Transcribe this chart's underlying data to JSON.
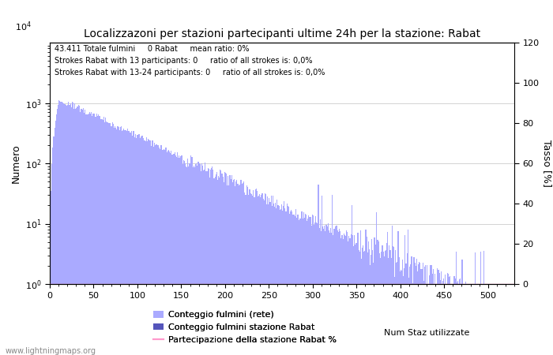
{
  "title": "Localizzazoni per stazioni partecipanti ultime 24h per la stazione: Rabat",
  "ylabel_left": "Numero",
  "ylabel_right": "Tasso [%]",
  "annotation_lines": [
    "43.411 Totale fulmini     0 Rabat     mean ratio: 0%",
    "Strokes Rabat with 13 participants: 0     ratio of all strokes is: 0,0%",
    "Strokes Rabat with 13-24 participants: 0     ratio of all strokes is: 0,0%"
  ],
  "bar_color_light": "#aaaaff",
  "bar_color_dark": "#5555bb",
  "line_color_pink": "#ff99cc",
  "legend_labels": [
    "Conteggio fulmini (rete)",
    "Conteggio fulmini stazione Rabat",
    "Num Staz utilizzate",
    "Partecipazione della stazione Rabat %"
  ],
  "watermark": "www.lightningmaps.org",
  "xlim": [
    0,
    530
  ],
  "ylim_log_min": 1,
  "ylim_log_max": 10000,
  "ylim_right": [
    0,
    120
  ],
  "xticks": [
    0,
    50,
    100,
    150,
    200,
    250,
    300,
    350,
    400,
    450,
    500
  ],
  "yticks_right": [
    0,
    20,
    40,
    60,
    80,
    100,
    120
  ],
  "num_bars": 530,
  "peak_value": 1100,
  "decay_rate": 0.016,
  "seed": 12
}
